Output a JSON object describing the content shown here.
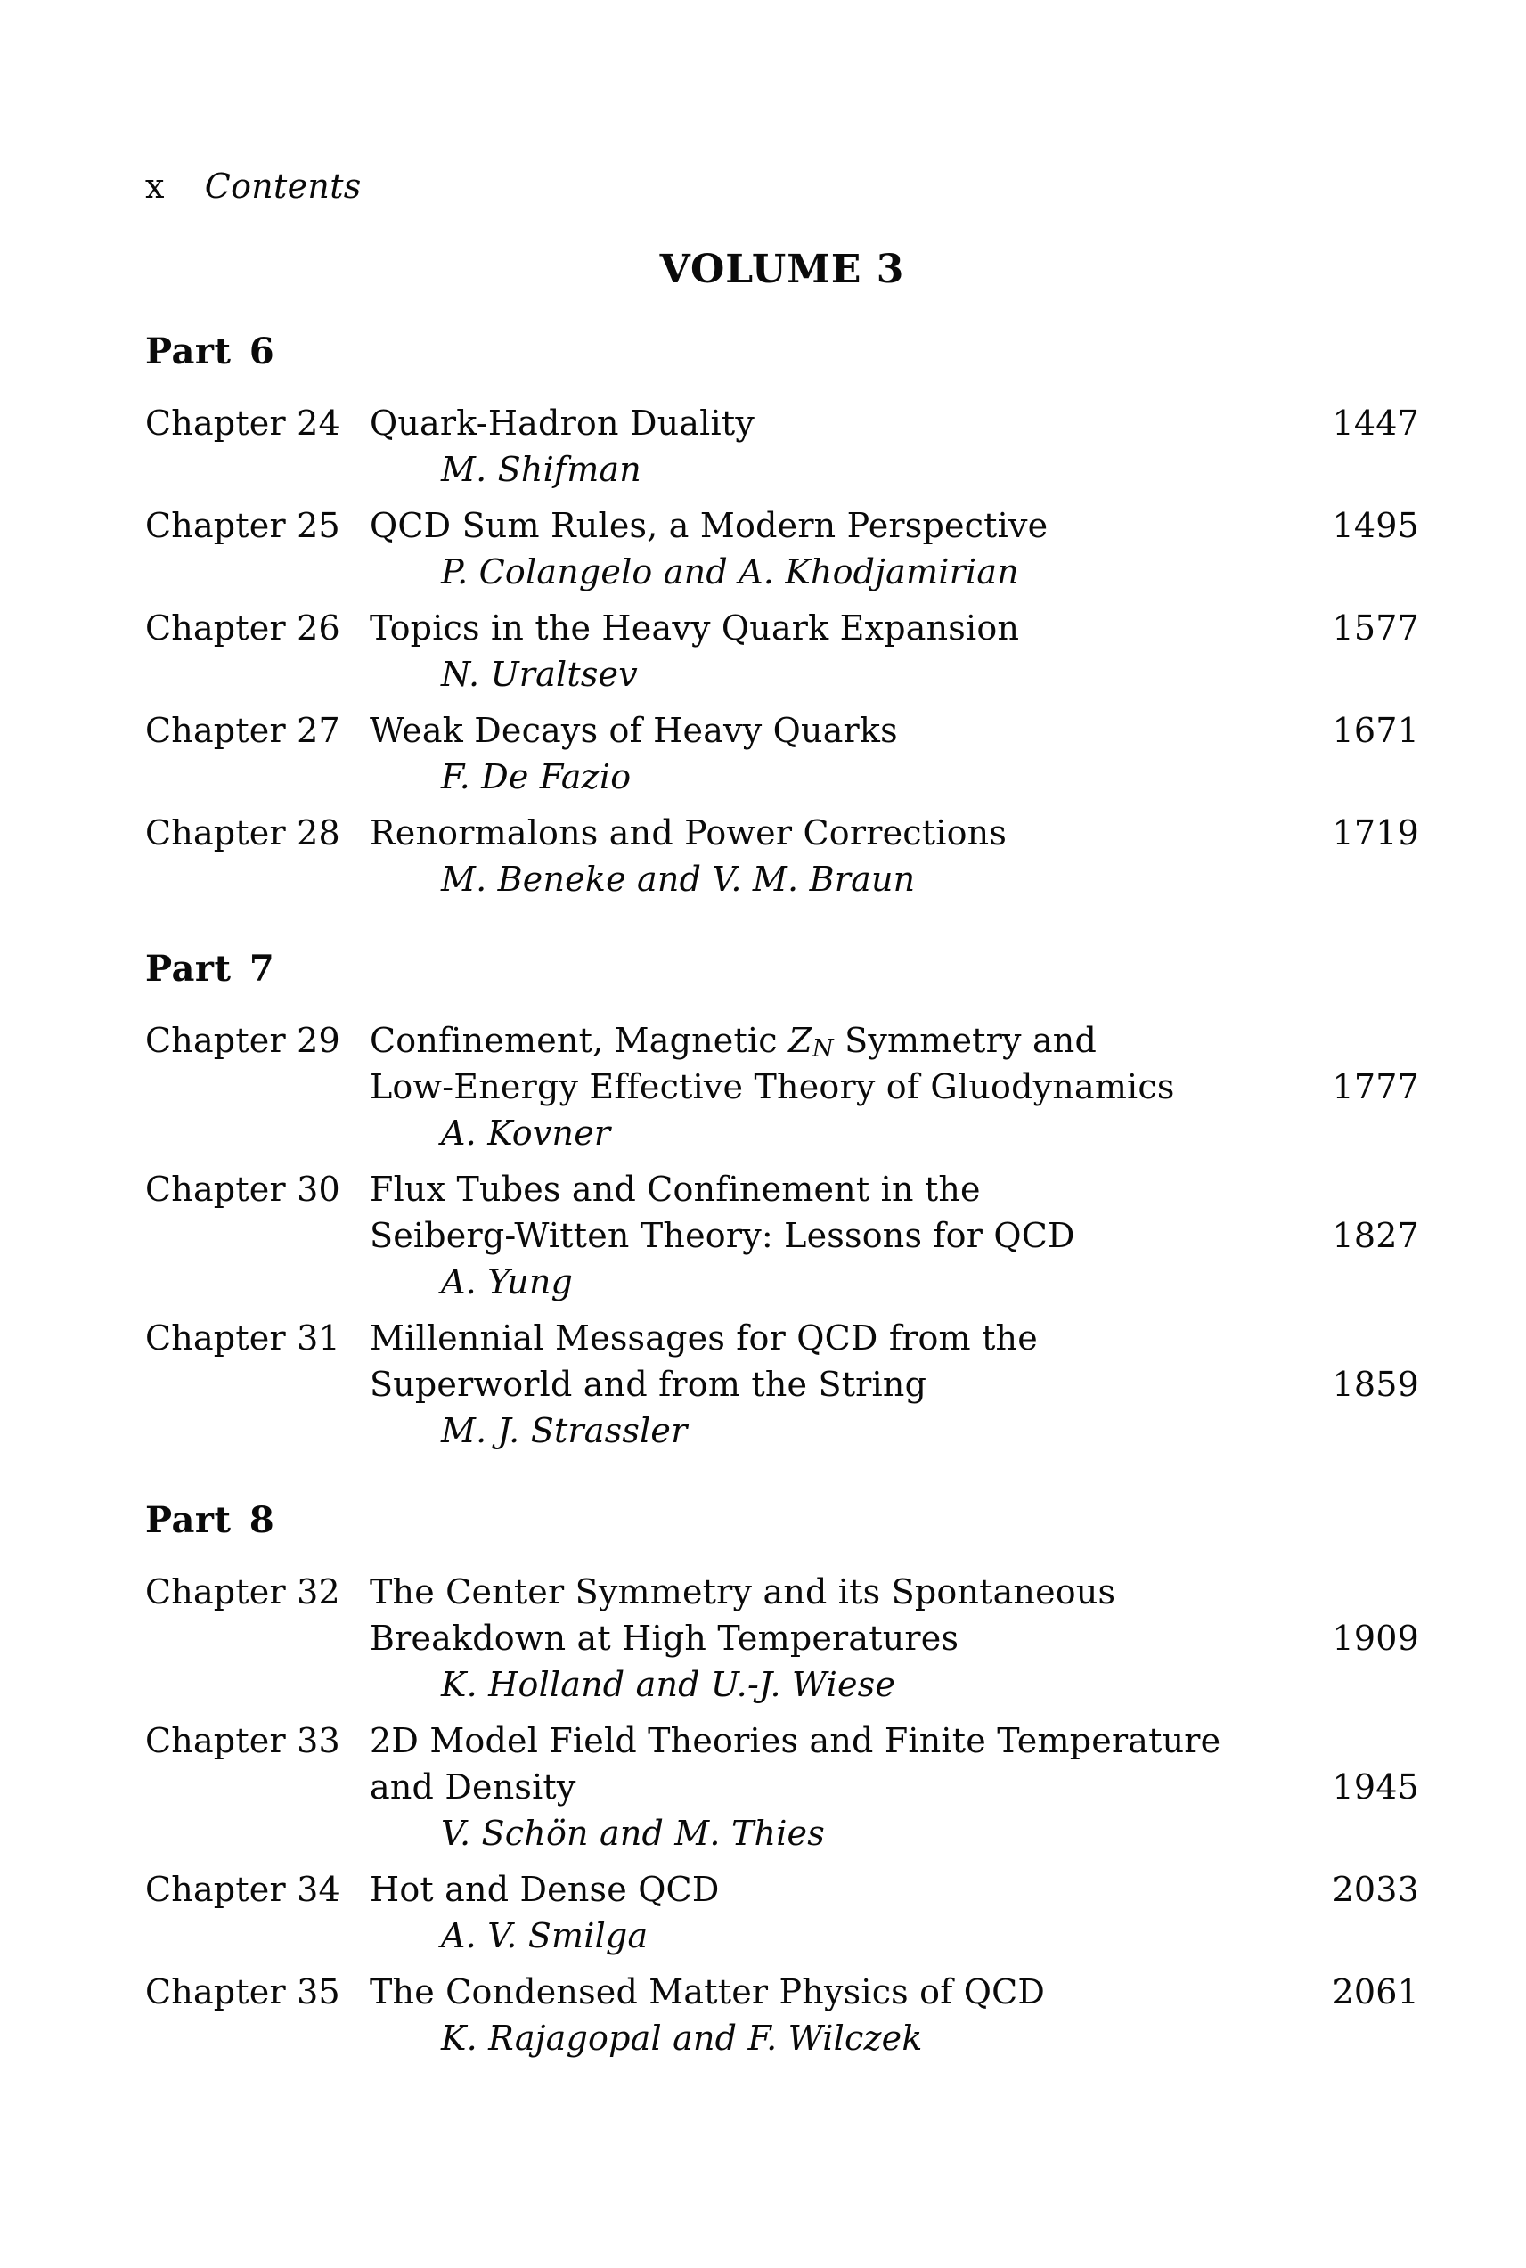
{
  "colors": {
    "text": "#0a0a0a",
    "background": "#ffffff"
  },
  "page_header": {
    "page_number": "x",
    "title": "Contents"
  },
  "volume_heading": "VOLUME 3",
  "parts": [
    {
      "label": "Part 6",
      "chapters": [
        {
          "label": "Chapter 24",
          "title_lines": [
            "Quark-Hadron Duality"
          ],
          "authors": "M. Shifman",
          "page": "1447"
        },
        {
          "label": "Chapter 25",
          "title_lines": [
            "QCD Sum Rules, a Modern Perspective"
          ],
          "authors": "P. Colangelo and A. Khodjamirian",
          "page": "1495"
        },
        {
          "label": "Chapter 26",
          "title_lines": [
            "Topics in the Heavy Quark Expansion"
          ],
          "authors": "N. Uraltsev",
          "page": "1577"
        },
        {
          "label": "Chapter 27",
          "title_lines": [
            "Weak Decays of Heavy Quarks"
          ],
          "authors": "F. De Fazio",
          "page": "1671"
        },
        {
          "label": "Chapter 28",
          "title_lines": [
            "Renormalons and Power Corrections"
          ],
          "authors": "M. Beneke and V. M. Braun",
          "page": "1719"
        }
      ]
    },
    {
      "label": "Part 7",
      "chapters": [
        {
          "label": "Chapter 29",
          "title_lines": [
            {
              "pre": "Confinement, Magnetic ",
              "base": "Z",
              "sub": "N",
              "post": " Symmetry and"
            },
            "Low-Energy Effective Theory of Gluodynamics"
          ],
          "authors": "A. Kovner",
          "page": "1777"
        },
        {
          "label": "Chapter 30",
          "title_lines": [
            "Flux Tubes and Confinement in the",
            "Seiberg-Witten Theory: Lessons for QCD"
          ],
          "authors": "A. Yung",
          "page": "1827"
        },
        {
          "label": "Chapter 31",
          "title_lines": [
            "Millennial Messages for QCD from the",
            "Superworld and from the String"
          ],
          "authors": "M. J. Strassler",
          "page": "1859"
        }
      ]
    },
    {
      "label": "Part 8",
      "chapters": [
        {
          "label": "Chapter 32",
          "title_lines": [
            "The Center Symmetry and its Spontaneous",
            "Breakdown at High Temperatures"
          ],
          "authors": "K. Holland and U.-J. Wiese",
          "page": "1909"
        },
        {
          "label": "Chapter 33",
          "title_lines": [
            "2D Model Field Theories and Finite Temperature",
            "and Density"
          ],
          "authors": "V. Schön and M. Thies",
          "page": "1945"
        },
        {
          "label": "Chapter 34",
          "title_lines": [
            "Hot and Dense QCD"
          ],
          "authors": "A. V. Smilga",
          "page": "2033"
        },
        {
          "label": "Chapter 35",
          "title_lines": [
            "The Condensed Matter Physics of QCD"
          ],
          "authors": "K. Rajagopal and F. Wilczek",
          "page": "2061"
        }
      ]
    }
  ]
}
